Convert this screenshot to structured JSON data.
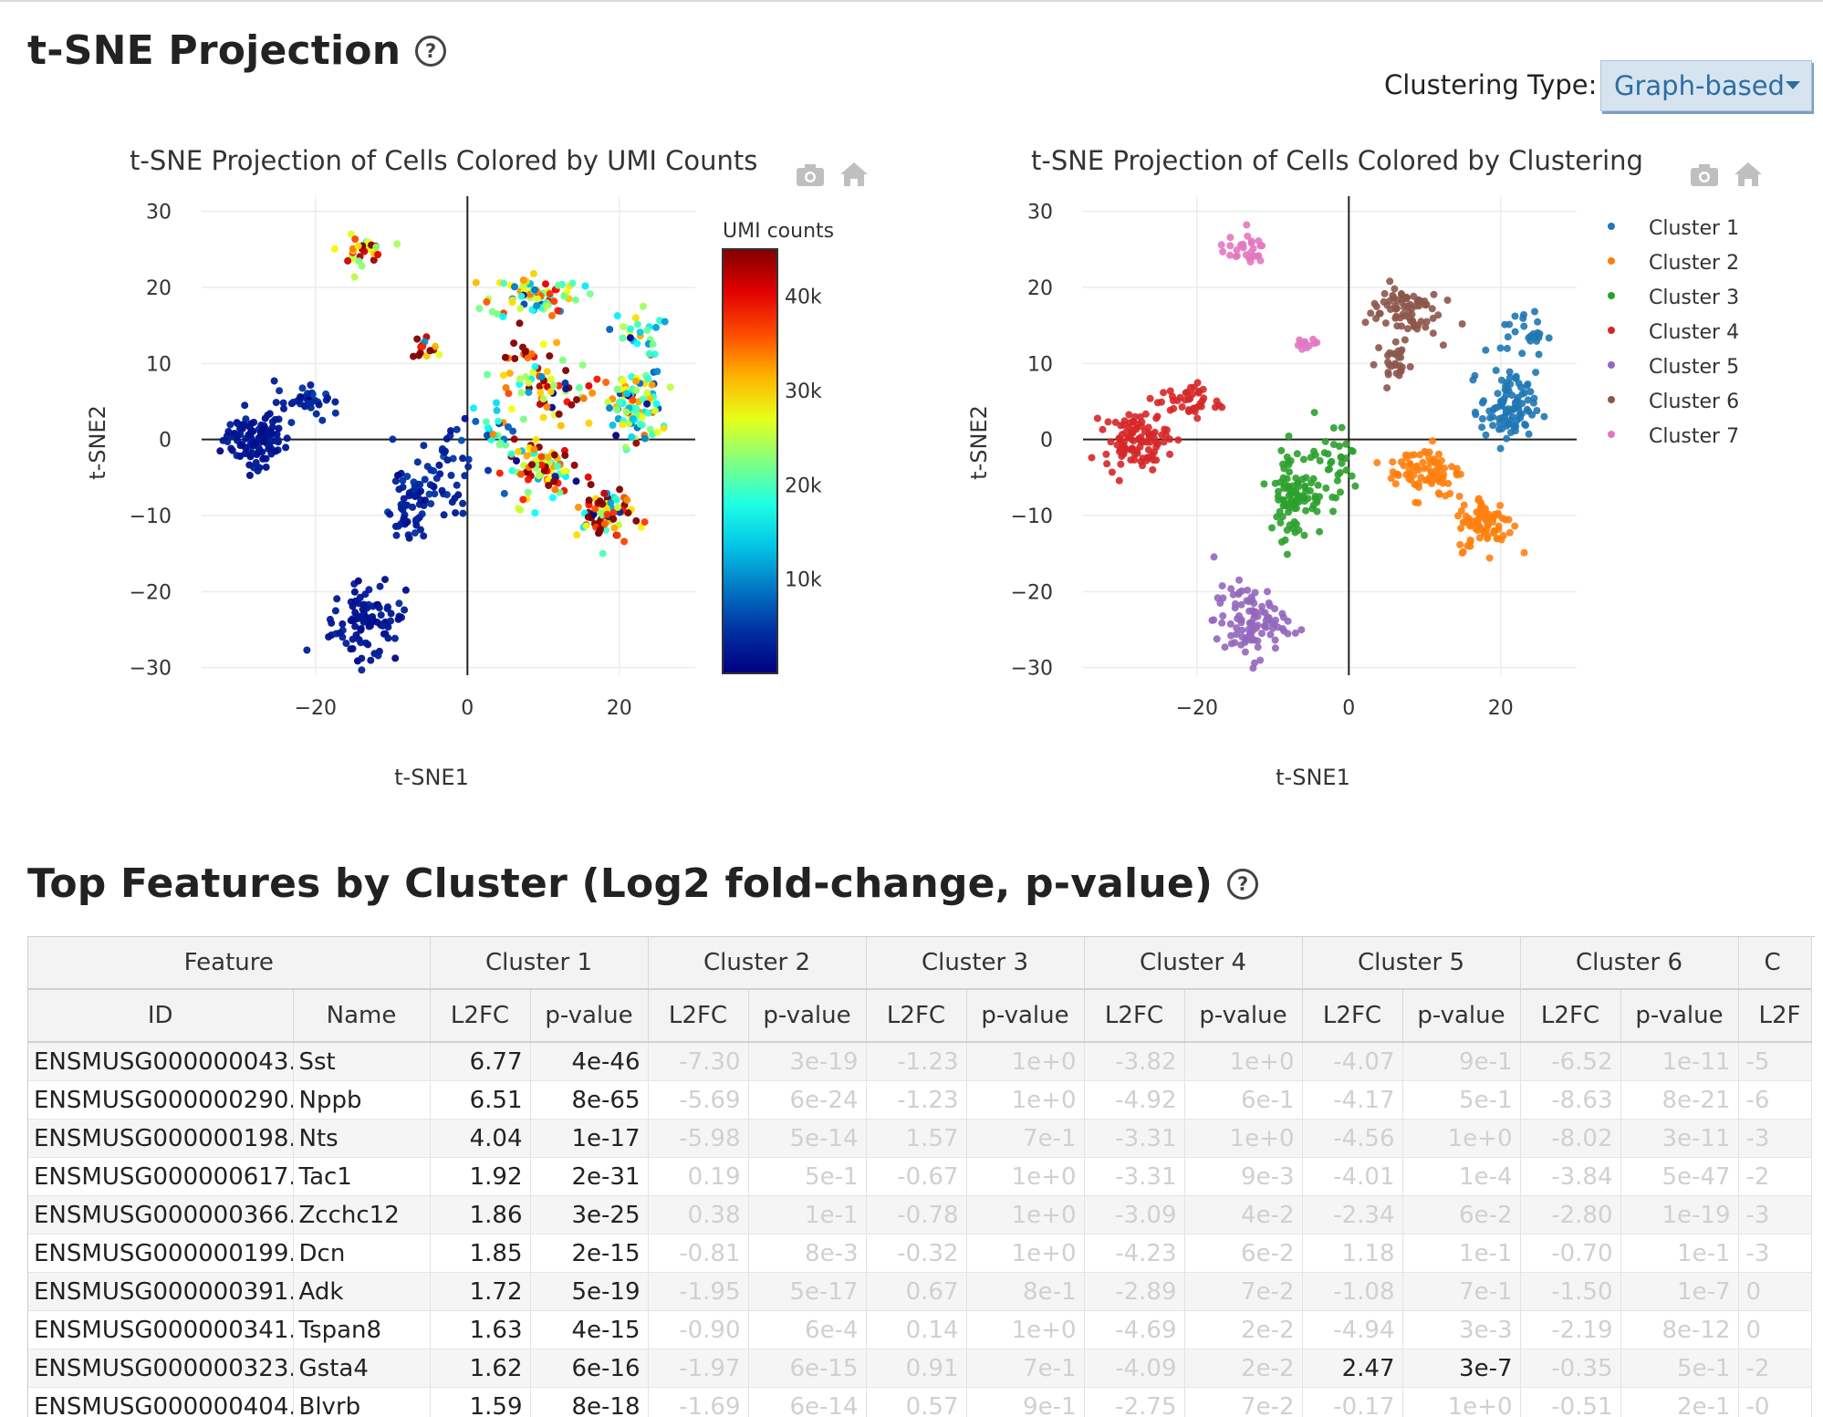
{
  "page": {
    "tsne_title": "t-SNE Projection",
    "features_title": "Top Features by Cluster (Log2 fold-change, p-value)",
    "help_glyph": "?",
    "clustering_label": "Clustering Type:",
    "clustering_value": "Graph-based"
  },
  "colors": {
    "cluster": [
      "#1f77b4",
      "#ff7f0e",
      "#2ca02c",
      "#d62728",
      "#9467bd",
      "#8c564b",
      "#e377c2"
    ],
    "select_bg": "#d6e4f0",
    "select_text": "#2d6da3"
  },
  "icons": [
    "camera-icon",
    "home-icon",
    "help-icon",
    "caret-down-icon"
  ],
  "chart_data": [
    {
      "type": "scatter",
      "title": "t-SNE Projection of Cells Colored by UMI Counts",
      "xlabel": "t-SNE1",
      "ylabel": "t-SNE2",
      "xlim": [
        -35,
        30
      ],
      "ylim": [
        -31,
        32
      ],
      "xticks": [
        -20,
        0,
        20
      ],
      "yticks": [
        30,
        20,
        10,
        0,
        -10,
        -20,
        -30
      ],
      "xtick_labels": [
        "−20",
        "0",
        "20"
      ],
      "ytick_labels": [
        "30",
        "20",
        "10",
        "0",
        "−10",
        "−20",
        "−30"
      ],
      "colorbar": {
        "title": "UMI counts",
        "range": [
          0,
          45000
        ],
        "ticks": [
          10000,
          20000,
          30000,
          40000
        ],
        "tick_labels": [
          "10k",
          "20k",
          "30k",
          "40k"
        ],
        "colorscale": "jet"
      },
      "groups": [
        {
          "cx": -28,
          "cy": 0,
          "sx": 3.5,
          "sy": 3,
          "n": 110,
          "umi": 2000
        },
        {
          "cx": -21,
          "cy": 5,
          "sx": 3.5,
          "sy": 2,
          "n": 35,
          "umi": 3000
        },
        {
          "cx": -13,
          "cy": -24,
          "sx": 4,
          "sy": 4,
          "n": 95,
          "umi": 2000
        },
        {
          "cx": -8,
          "cy": -9,
          "sx": 2.5,
          "sy": 4,
          "n": 55,
          "umi": 3000
        },
        {
          "cx": -3,
          "cy": -3,
          "sx": 4,
          "sy": 5,
          "n": 45,
          "umi": 3500
        },
        {
          "cx": -14,
          "cy": 25,
          "sx": 2.5,
          "sy": 1.5,
          "n": 30,
          "umi": 30000
        },
        {
          "cx": -6,
          "cy": 12,
          "sx": 2,
          "sy": 1.5,
          "n": 14,
          "umi": 38000
        },
        {
          "cx": 9,
          "cy": 19,
          "sx": 5,
          "sy": 2.5,
          "n": 75,
          "umi": 25000
        },
        {
          "cx": 22,
          "cy": 14,
          "sx": 3,
          "sy": 2.5,
          "n": 25,
          "umi": 16000
        },
        {
          "cx": 22,
          "cy": 4,
          "sx": 3,
          "sy": 4,
          "n": 95,
          "umi": 22000
        },
        {
          "cx": 10,
          "cy": -4,
          "sx": 4,
          "sy": 3,
          "n": 85,
          "umi": 32000
        },
        {
          "cx": 18,
          "cy": -10,
          "sx": 3,
          "sy": 3.5,
          "n": 85,
          "umi": 34000
        },
        {
          "cx": 8,
          "cy": 9,
          "sx": 4,
          "sy": 4,
          "n": 45,
          "umi": 35000
        },
        {
          "cx": 4,
          "cy": 2,
          "sx": 3,
          "sy": 3,
          "n": 25,
          "umi": 15000
        },
        {
          "cx": 12,
          "cy": 6,
          "sx": 4,
          "sy": 3,
          "n": 30,
          "umi": 26000
        }
      ]
    },
    {
      "type": "scatter",
      "title": "t-SNE Projection of Cells Colored by Clustering",
      "xlabel": "t-SNE1",
      "ylabel": "t-SNE2",
      "xlim": [
        -35,
        30
      ],
      "ylim": [
        -31,
        32
      ],
      "xticks": [
        -20,
        0,
        20
      ],
      "yticks": [
        30,
        20,
        10,
        0,
        -10,
        -20,
        -30
      ],
      "xtick_labels": [
        "−20",
        "0",
        "20"
      ],
      "ytick_labels": [
        "30",
        "20",
        "10",
        "0",
        "−10",
        "−20",
        "−30"
      ],
      "legend_position": "top-right",
      "series": [
        {
          "name": "Cluster 1",
          "groups": [
            {
              "cx": 21,
              "cy": 4,
              "sx": 3,
              "sy": 4,
              "n": 95
            },
            {
              "cx": 23,
              "cy": 14,
              "sx": 2.5,
              "sy": 2.5,
              "n": 25
            }
          ]
        },
        {
          "name": "Cluster 2",
          "groups": [
            {
              "cx": 10,
              "cy": -4,
              "sx": 4,
              "sy": 3,
              "n": 80
            },
            {
              "cx": 18,
              "cy": -11,
              "sx": 3,
              "sy": 3,
              "n": 80
            }
          ]
        },
        {
          "name": "Cluster 3",
          "groups": [
            {
              "cx": -7,
              "cy": -7,
              "sx": 3,
              "sy": 5,
              "n": 95
            },
            {
              "cx": -2,
              "cy": -3,
              "sx": 3,
              "sy": 5,
              "n": 30
            }
          ]
        },
        {
          "name": "Cluster 4",
          "groups": [
            {
              "cx": -28,
              "cy": 0,
              "sx": 3.5,
              "sy": 3,
              "n": 100
            },
            {
              "cx": -21,
              "cy": 5,
              "sx": 3.5,
              "sy": 2,
              "n": 40
            }
          ]
        },
        {
          "name": "Cluster 5",
          "groups": [
            {
              "cx": -13,
              "cy": -24,
              "sx": 4,
              "sy": 4,
              "n": 100
            }
          ]
        },
        {
          "name": "Cluster 6",
          "groups": [
            {
              "cx": 7,
              "cy": 17,
              "sx": 4,
              "sy": 3,
              "n": 75
            },
            {
              "cx": 6,
              "cy": 10,
              "sx": 2,
              "sy": 2.5,
              "n": 25
            }
          ]
        },
        {
          "name": "Cluster 7",
          "groups": [
            {
              "cx": -14,
              "cy": 25,
              "sx": 2.5,
              "sy": 1.5,
              "n": 30
            },
            {
              "cx": -6,
              "cy": 12,
              "sx": 2,
              "sy": 1,
              "n": 12
            }
          ]
        }
      ]
    }
  ],
  "table": {
    "group_headers": [
      "Feature",
      "Cluster 1",
      "Cluster 2",
      "Cluster 3",
      "Cluster 4",
      "Cluster 5",
      "Cluster 6",
      "C"
    ],
    "sub_headers": [
      "ID",
      "Name",
      "L2FC",
      "p-value",
      "L2FC",
      "p-value",
      "L2FC",
      "p-value",
      "L2FC",
      "p-value",
      "L2FC",
      "p-value",
      "L2FC",
      "p-value",
      "L2F"
    ],
    "rows": [
      {
        "id": "ENSMUSG000000043...",
        "name": "Sst",
        "vals": [
          [
            "6.77",
            "4e-46"
          ],
          [
            "-7.30",
            "3e-19"
          ],
          [
            "-1.23",
            "1e+0"
          ],
          [
            "-3.82",
            "1e+0"
          ],
          [
            "-4.07",
            "9e-1"
          ],
          [
            "-6.52",
            "1e-11"
          ]
        ],
        "last": "-5"
      },
      {
        "id": "ENSMUSG000000290...",
        "name": "Nppb",
        "vals": [
          [
            "6.51",
            "8e-65"
          ],
          [
            "-5.69",
            "6e-24"
          ],
          [
            "-1.23",
            "1e+0"
          ],
          [
            "-4.92",
            "6e-1"
          ],
          [
            "-4.17",
            "5e-1"
          ],
          [
            "-8.63",
            "8e-21"
          ]
        ],
        "last": "-6"
      },
      {
        "id": "ENSMUSG000000198...",
        "name": "Nts",
        "vals": [
          [
            "4.04",
            "1e-17"
          ],
          [
            "-5.98",
            "5e-14"
          ],
          [
            "1.57",
            "7e-1"
          ],
          [
            "-3.31",
            "1e+0"
          ],
          [
            "-4.56",
            "1e+0"
          ],
          [
            "-8.02",
            "3e-11"
          ]
        ],
        "last": "-3"
      },
      {
        "id": "ENSMUSG000000617...",
        "name": "Tac1",
        "vals": [
          [
            "1.92",
            "2e-31"
          ],
          [
            "0.19",
            "5e-1"
          ],
          [
            "-0.67",
            "1e+0"
          ],
          [
            "-3.31",
            "9e-3"
          ],
          [
            "-4.01",
            "1e-4"
          ],
          [
            "-3.84",
            "5e-47"
          ]
        ],
        "last": "-2"
      },
      {
        "id": "ENSMUSG000000366...",
        "name": "Zcchc12",
        "vals": [
          [
            "1.86",
            "3e-25"
          ],
          [
            "0.38",
            "1e-1"
          ],
          [
            "-0.78",
            "1e+0"
          ],
          [
            "-3.09",
            "4e-2"
          ],
          [
            "-2.34",
            "6e-2"
          ],
          [
            "-2.80",
            "1e-19"
          ]
        ],
        "last": "-3"
      },
      {
        "id": "ENSMUSG000000199...",
        "name": "Dcn",
        "vals": [
          [
            "1.85",
            "2e-15"
          ],
          [
            "-0.81",
            "8e-3"
          ],
          [
            "-0.32",
            "1e+0"
          ],
          [
            "-4.23",
            "6e-2"
          ],
          [
            "1.18",
            "1e-1"
          ],
          [
            "-0.70",
            "1e-1"
          ]
        ],
        "last": "-3"
      },
      {
        "id": "ENSMUSG000000391...",
        "name": "Adk",
        "vals": [
          [
            "1.72",
            "5e-19"
          ],
          [
            "-1.95",
            "5e-17"
          ],
          [
            "0.67",
            "8e-1"
          ],
          [
            "-2.89",
            "7e-2"
          ],
          [
            "-1.08",
            "7e-1"
          ],
          [
            "-1.50",
            "1e-7"
          ]
        ],
        "last": "0"
      },
      {
        "id": "ENSMUSG000000341...",
        "name": "Tspan8",
        "vals": [
          [
            "1.63",
            "4e-15"
          ],
          [
            "-0.90",
            "6e-4"
          ],
          [
            "0.14",
            "1e+0"
          ],
          [
            "-4.69",
            "2e-2"
          ],
          [
            "-4.94",
            "3e-3"
          ],
          [
            "-2.19",
            "8e-12"
          ]
        ],
        "last": "0"
      },
      {
        "id": "ENSMUSG000000323...",
        "name": "Gsta4",
        "vals": [
          [
            "1.62",
            "6e-16"
          ],
          [
            "-1.97",
            "6e-15"
          ],
          [
            "0.91",
            "7e-1"
          ],
          [
            "-4.09",
            "2e-2"
          ],
          [
            "2.47",
            "3e-7"
          ],
          [
            "-0.35",
            "5e-1"
          ]
        ],
        "last": "-2"
      },
      {
        "id": "ENSMUSG000000404...",
        "name": "Blvrb",
        "vals": [
          [
            "1.59",
            "8e-18"
          ],
          [
            "-1.69",
            "6e-14"
          ],
          [
            "0.57",
            "9e-1"
          ],
          [
            "-2.75",
            "7e-2"
          ],
          [
            "-0.17",
            "1e+0"
          ],
          [
            "-0.51",
            "2e-1"
          ]
        ],
        "last": "-0"
      }
    ],
    "highlight": [
      [
        0,
        0
      ],
      [
        1,
        0
      ],
      [
        2,
        0
      ],
      [
        3,
        0
      ],
      [
        4,
        0
      ],
      [
        5,
        0
      ],
      [
        6,
        0
      ],
      [
        7,
        0
      ],
      [
        8,
        0
      ],
      [
        9,
        0
      ],
      [
        8,
        4
      ]
    ]
  }
}
